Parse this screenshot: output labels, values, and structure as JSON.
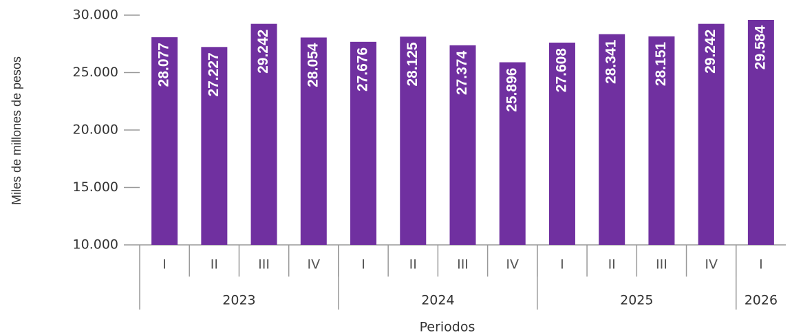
{
  "chart_data": {
    "type": "bar",
    "y_label": "Miles de millones de pesos",
    "x_label": "Periodos",
    "categories": [
      "I",
      "II",
      "III",
      "IV",
      "I",
      "II",
      "III",
      "IV",
      "I",
      "II",
      "III",
      "IV",
      "I"
    ],
    "groups": [
      {
        "label": "2023",
        "size": 4
      },
      {
        "label": "2024",
        "size": 4
      },
      {
        "label": "2025",
        "size": 4
      },
      {
        "label": "2026",
        "size": 1
      }
    ],
    "values": [
      28077,
      27227,
      29242,
      28054,
      27676,
      28125,
      27374,
      25896,
      27608,
      28341,
      28151,
      29242,
      29584
    ],
    "value_labels": [
      "28.077",
      "27.227",
      "29.242",
      "28.054",
      "27.676",
      "28.125",
      "27.374",
      "25.896",
      "27.608",
      "28.341",
      "28.151",
      "29.242",
      "29.584"
    ],
    "color": "#7030a0",
    "ylim": [
      10000,
      30000
    ],
    "yticks": [
      {
        "value": 10000,
        "label": "10.000"
      },
      {
        "value": 15000,
        "label": "15.000"
      },
      {
        "value": 20000,
        "label": "20.000"
      },
      {
        "value": 25000,
        "label": "25.000"
      },
      {
        "value": 30000,
        "label": "30.000"
      }
    ],
    "grid": false
  }
}
